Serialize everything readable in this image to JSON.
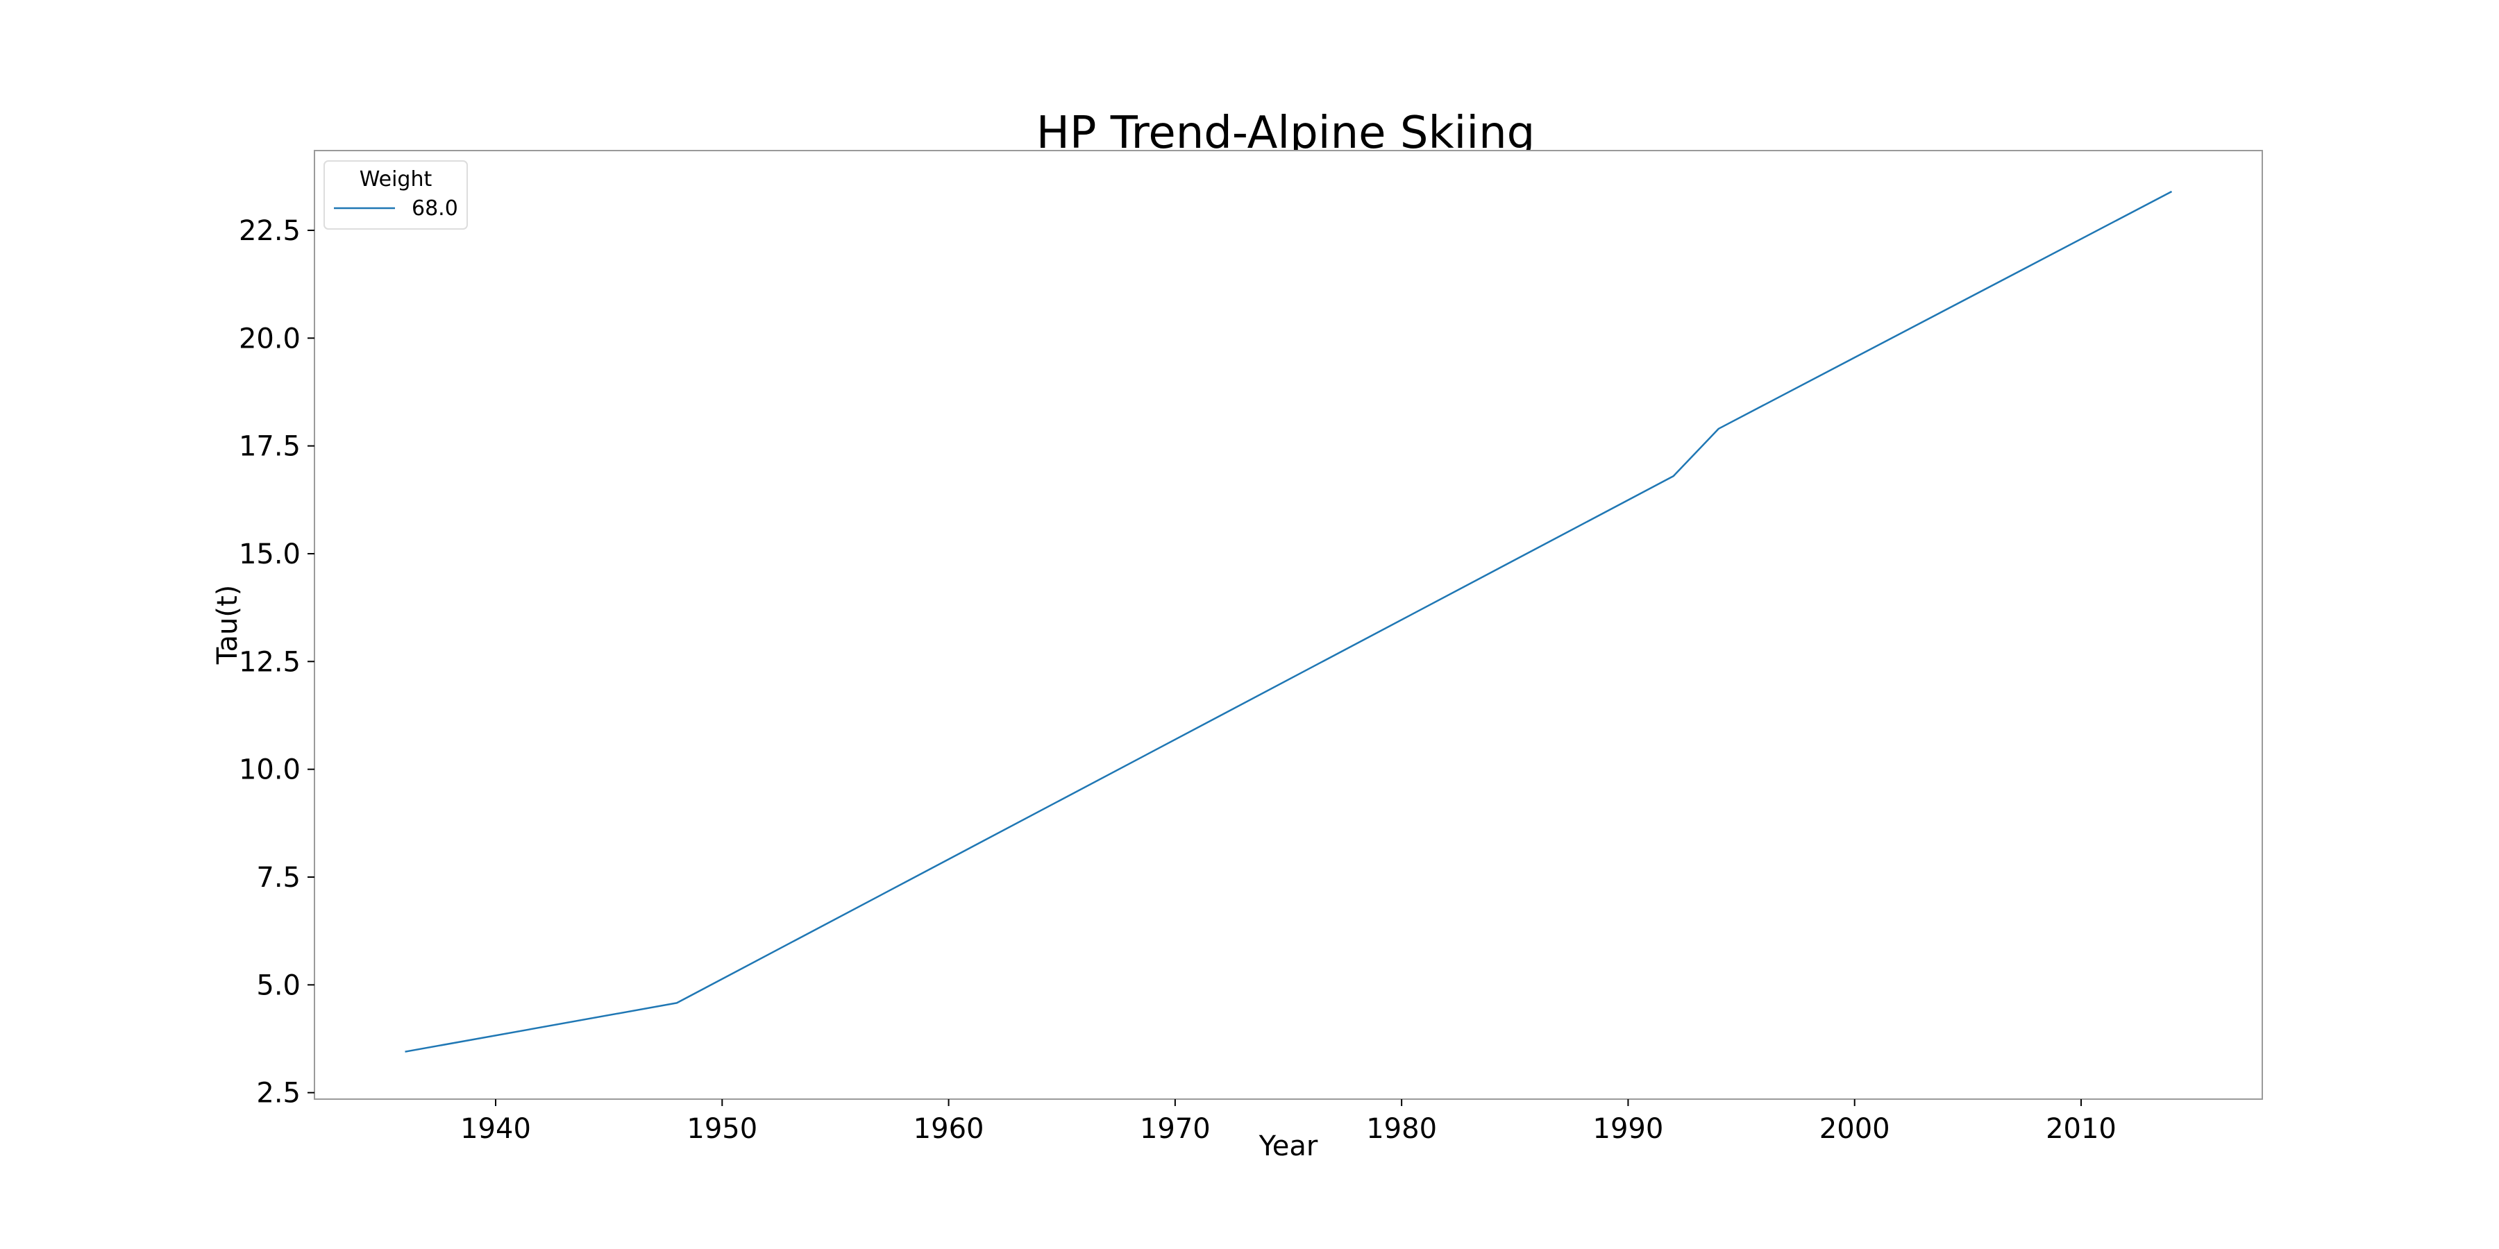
{
  "chart_data": {
    "type": "line",
    "title": "HP Trend-Alpine Skiing",
    "xlabel": "Year",
    "ylabel": "Tau(t)",
    "xlim": [
      1932,
      2018
    ],
    "ylim": [
      2.35,
      24.35
    ],
    "xticks": [
      1940,
      1950,
      1960,
      1970,
      1980,
      1990,
      2000,
      2010
    ],
    "yticks": [
      2.5,
      5.0,
      7.5,
      10.0,
      12.5,
      15.0,
      17.5,
      20.0,
      22.5
    ],
    "grid": false,
    "legend": {
      "title": "Weight",
      "position": "top-left"
    },
    "series": [
      {
        "name": "68.0",
        "color": "#1f77b4",
        "x": [
          1936,
          1948,
          1992,
          1994,
          2014
        ],
        "y": [
          3.45,
          4.58,
          16.8,
          17.9,
          23.4
        ]
      }
    ]
  }
}
